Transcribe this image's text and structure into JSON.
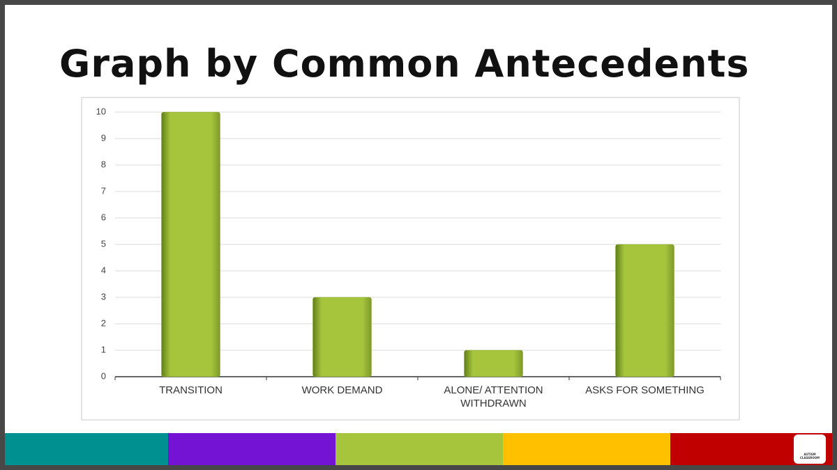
{
  "chart_data": {
    "type": "bar",
    "title": "Graph by Common Antecedents",
    "categories": [
      "TRANSITION",
      "WORK DEMAND",
      "ALONE/ ATTENTION WITHDRAWN",
      "ASKS FOR SOMETHING"
    ],
    "values": [
      10,
      3,
      1,
      5
    ],
    "color": "#a6c43c",
    "ylim": [
      0,
      10
    ],
    "yticks": [
      0,
      1,
      2,
      3,
      4,
      5,
      6,
      7,
      8,
      9,
      10
    ],
    "grid": true
  },
  "logo_text": "AUTISM CLASSROOM"
}
